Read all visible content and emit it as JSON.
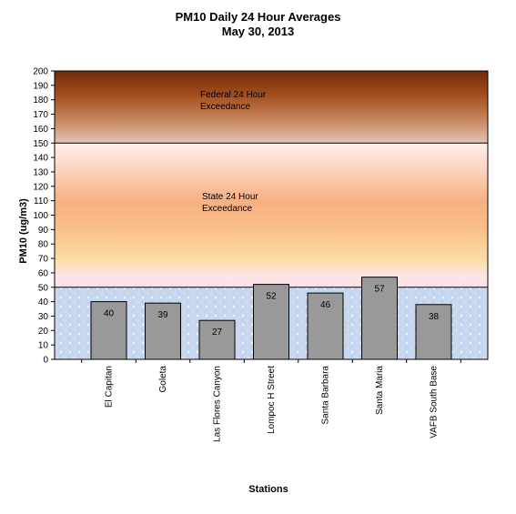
{
  "chart_data": {
    "type": "bar",
    "title": "PM10 Daily 24 Hour Averages",
    "subtitle": "May 30, 2013",
    "xlabel": "Stations",
    "ylabel": "PM10 (ug/m3)",
    "ylim": [
      0,
      200
    ],
    "ytick_step": 10,
    "categories": [
      "El Capitan",
      "Goleta",
      "Las Flores Canyon",
      "Lompoc H Street",
      "Santa Barbara",
      "Santa Maria",
      "VAFB South Base"
    ],
    "values": [
      40,
      39,
      27,
      52,
      46,
      57,
      38
    ],
    "bar_color": "#999999",
    "bands": [
      {
        "label": "Federal 24 Hour Exceedance",
        "label_lines": [
          "Federal 24 Hour",
          "Exceedance"
        ],
        "from": 150,
        "to": 200
      },
      {
        "label": "State 24 Hour Exceedance",
        "label_lines": [
          "State 24 Hour",
          "Exceedance"
        ],
        "from": 50,
        "to": 150
      },
      {
        "label": "",
        "from": 0,
        "to": 50
      }
    ],
    "grid": false,
    "legend": "none"
  }
}
